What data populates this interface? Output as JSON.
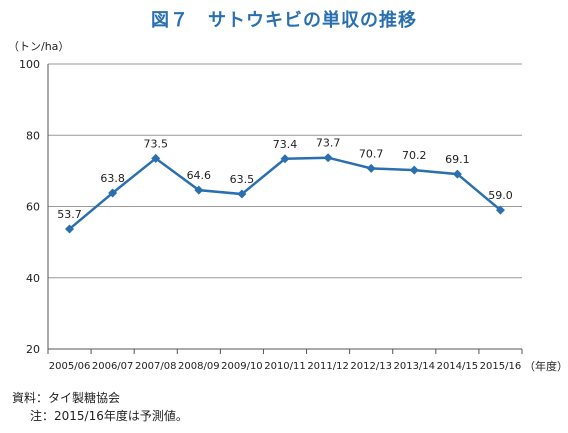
{
  "chart_data": {
    "type": "line",
    "title": "図７　サトウキビの単収の推移",
    "ylabel": "（トン/ha）",
    "xlabel": "（年度）",
    "categories": [
      "2005/06",
      "2006/07",
      "2007/08",
      "2008/09",
      "2009/10",
      "2010/11",
      "2011/12",
      "2012/13",
      "2013/14",
      "2014/15",
      "2015/16"
    ],
    "series": [
      {
        "values": [
          53.7,
          63.8,
          73.5,
          64.6,
          63.5,
          73.4,
          73.7,
          70.7,
          70.2,
          69.1,
          59.0
        ],
        "labels": [
          "53.7",
          "63.8",
          "73.5",
          "64.6",
          "63.5",
          "73.4",
          "73.7",
          "70.7",
          "70.2",
          "69.1",
          "59.0"
        ],
        "color": "#2a6fb0"
      }
    ],
    "ylim": [
      20,
      100
    ],
    "yticks": [
      "20",
      "40",
      "60",
      "80",
      "100"
    ],
    "grid": true,
    "legend": "none"
  },
  "notes": {
    "source": "資料：タイ製糖協会",
    "footnote": "注：2015/16年度は予測値。"
  }
}
